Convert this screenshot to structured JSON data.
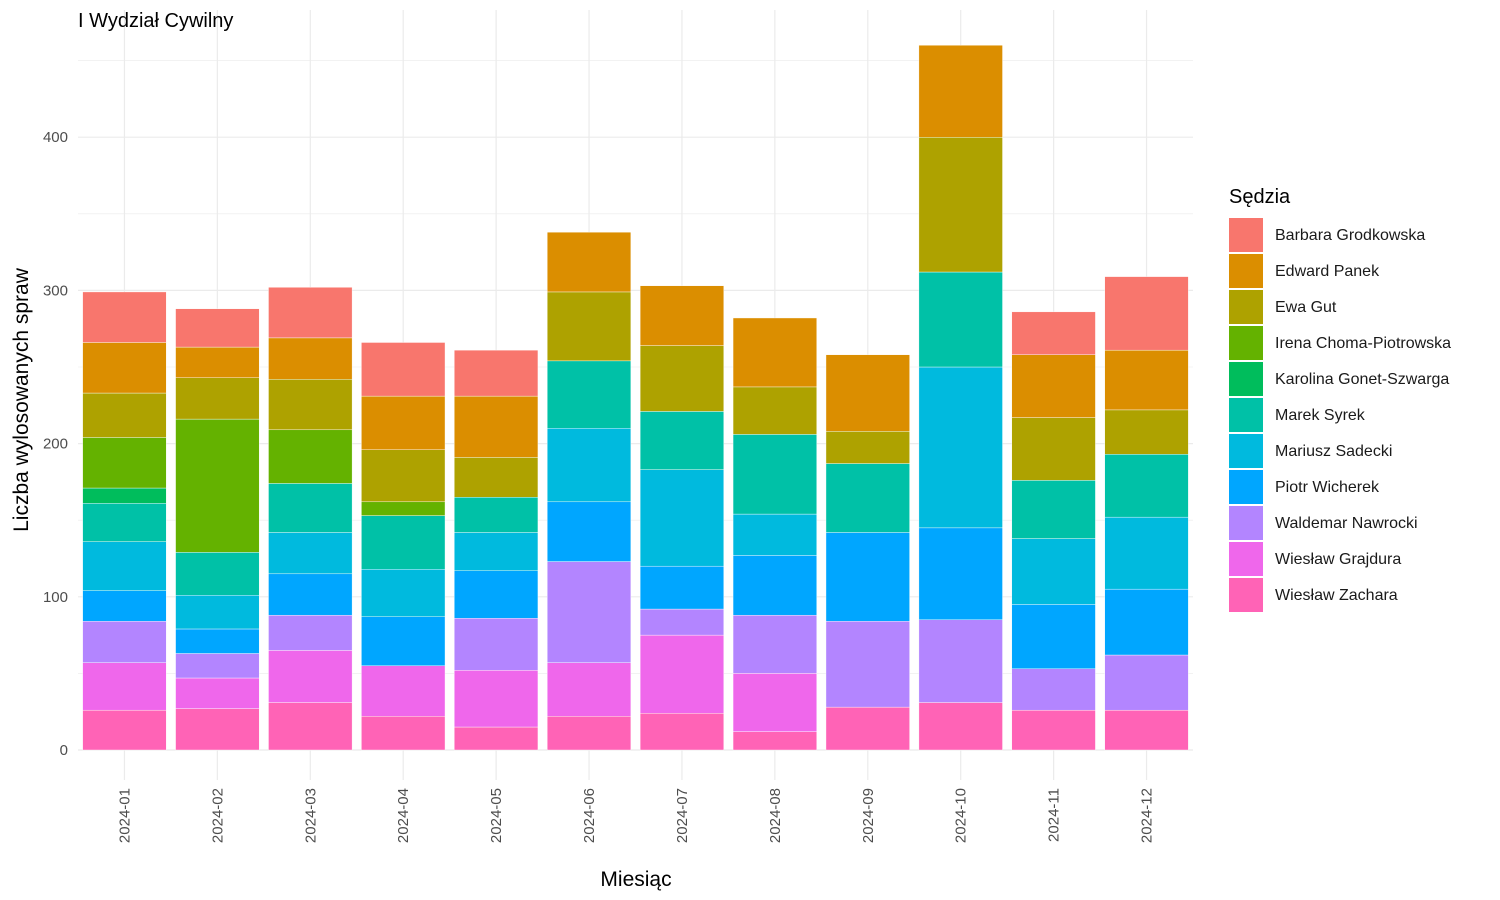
{
  "chart_data": {
    "type": "bar",
    "stacked": true,
    "title": "I Wydział Cywilny",
    "xlabel": "Miesiąc",
    "ylabel": "Liczba wylosowanych spraw",
    "ylim": [
      0,
      460
    ],
    "yticks": [
      0,
      100,
      200,
      300,
      400
    ],
    "grid": true,
    "legend_title": "Sędzia",
    "legend_position": "right",
    "categories": [
      "2024-01",
      "2024-02",
      "2024-03",
      "2024-04",
      "2024-05",
      "2024-06",
      "2024-07",
      "2024-08",
      "2024-09",
      "2024-10",
      "2024-11",
      "2024-12"
    ],
    "series": [
      {
        "name": "Barbara Grodkowska",
        "color": "#F8766D",
        "values": [
          33,
          25,
          33,
          35,
          30,
          0,
          0,
          0,
          0,
          0,
          28,
          48
        ]
      },
      {
        "name": "Edward Panek",
        "color": "#DB8E00",
        "values": [
          33,
          20,
          27,
          35,
          40,
          39,
          39,
          45,
          50,
          60,
          41,
          39
        ]
      },
      {
        "name": "Ewa Gut",
        "color": "#AEA200",
        "values": [
          29,
          27,
          33,
          34,
          26,
          45,
          43,
          31,
          21,
          88,
          41,
          29
        ]
      },
      {
        "name": "Irena Choma-Piotrowska",
        "color": "#64B200",
        "values": [
          33,
          87,
          35,
          9,
          0,
          0,
          0,
          0,
          0,
          0,
          0,
          0
        ]
      },
      {
        "name": "Karolina Gonet-Szwarga",
        "color": "#00BD5C",
        "values": [
          10,
          0,
          0,
          0,
          0,
          0,
          0,
          0,
          0,
          0,
          0,
          0
        ]
      },
      {
        "name": "Marek Syrek",
        "color": "#00C1A7",
        "values": [
          25,
          28,
          32,
          35,
          23,
          44,
          38,
          52,
          45,
          62,
          38,
          41
        ]
      },
      {
        "name": "Mariusz Sadecki",
        "color": "#00BADE",
        "values": [
          32,
          22,
          27,
          31,
          25,
          48,
          63,
          27,
          0,
          105,
          43,
          47
        ]
      },
      {
        "name": "Piotr Wicherek",
        "color": "#00A6FF",
        "values": [
          20,
          16,
          27,
          32,
          31,
          39,
          28,
          39,
          58,
          60,
          42,
          43
        ]
      },
      {
        "name": "Waldemar Nawrocki",
        "color": "#B385FF",
        "values": [
          27,
          16,
          23,
          0,
          34,
          66,
          17,
          38,
          56,
          54,
          27,
          36
        ]
      },
      {
        "name": "Wiesław Grajdura",
        "color": "#EF67EB",
        "values": [
          31,
          20,
          34,
          33,
          37,
          35,
          51,
          38,
          0,
          0,
          0,
          0
        ]
      },
      {
        "name": "Wiesław Zachara",
        "color": "#FF63B6",
        "values": [
          26,
          27,
          31,
          22,
          15,
          22,
          24,
          12,
          28,
          31,
          26,
          26
        ]
      }
    ]
  }
}
